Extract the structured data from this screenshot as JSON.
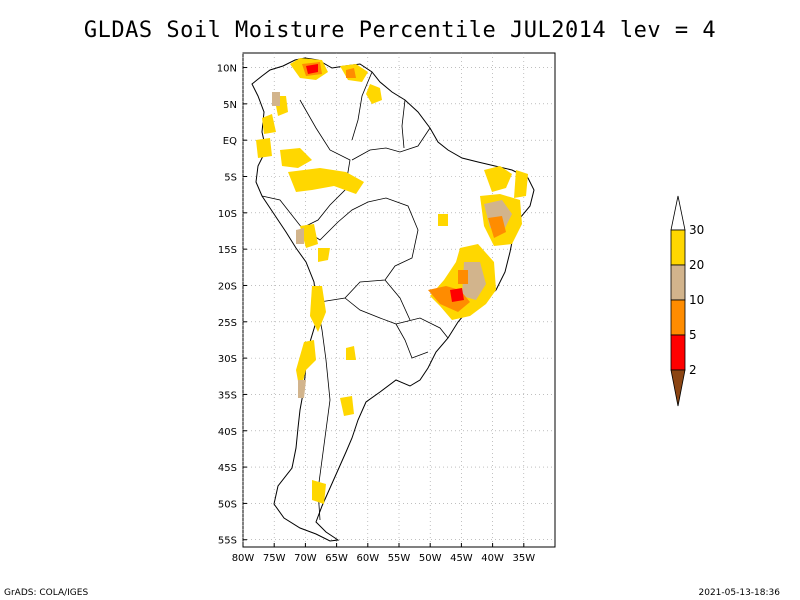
{
  "title": "GLDAS Soil Moisture Percentile JUL2014 lev = 4",
  "footer": {
    "left": "GrADS: COLA/IGES",
    "right": "2021-05-13-18:36"
  },
  "map": {
    "lon_range": [
      -80,
      -30
    ],
    "lat_range": [
      -56,
      12
    ],
    "x_ticks": [
      "80W",
      "75W",
      "70W",
      "65W",
      "60W",
      "55W",
      "50W",
      "45W",
      "40W",
      "35W"
    ],
    "x_tick_values": [
      -80,
      -75,
      -70,
      -65,
      -60,
      -55,
      -50,
      -45,
      -40,
      -35
    ],
    "y_ticks": [
      "10N",
      "5N",
      "EQ",
      "5S",
      "10S",
      "15S",
      "20S",
      "25S",
      "30S",
      "35S",
      "40S",
      "45S",
      "50S",
      "55S"
    ],
    "y_tick_values": [
      10,
      5,
      0,
      -5,
      -10,
      -15,
      -20,
      -25,
      -30,
      -35,
      -40,
      -45,
      -50,
      -55
    ],
    "grid": true
  },
  "colorbar": {
    "labels": [
      "2",
      "5",
      "10",
      "20",
      "30"
    ],
    "colors": [
      "#8b4513",
      "#ff0000",
      "#ff8c00",
      "#d2b48c",
      "#ffd700",
      "#ffffff"
    ]
  }
}
